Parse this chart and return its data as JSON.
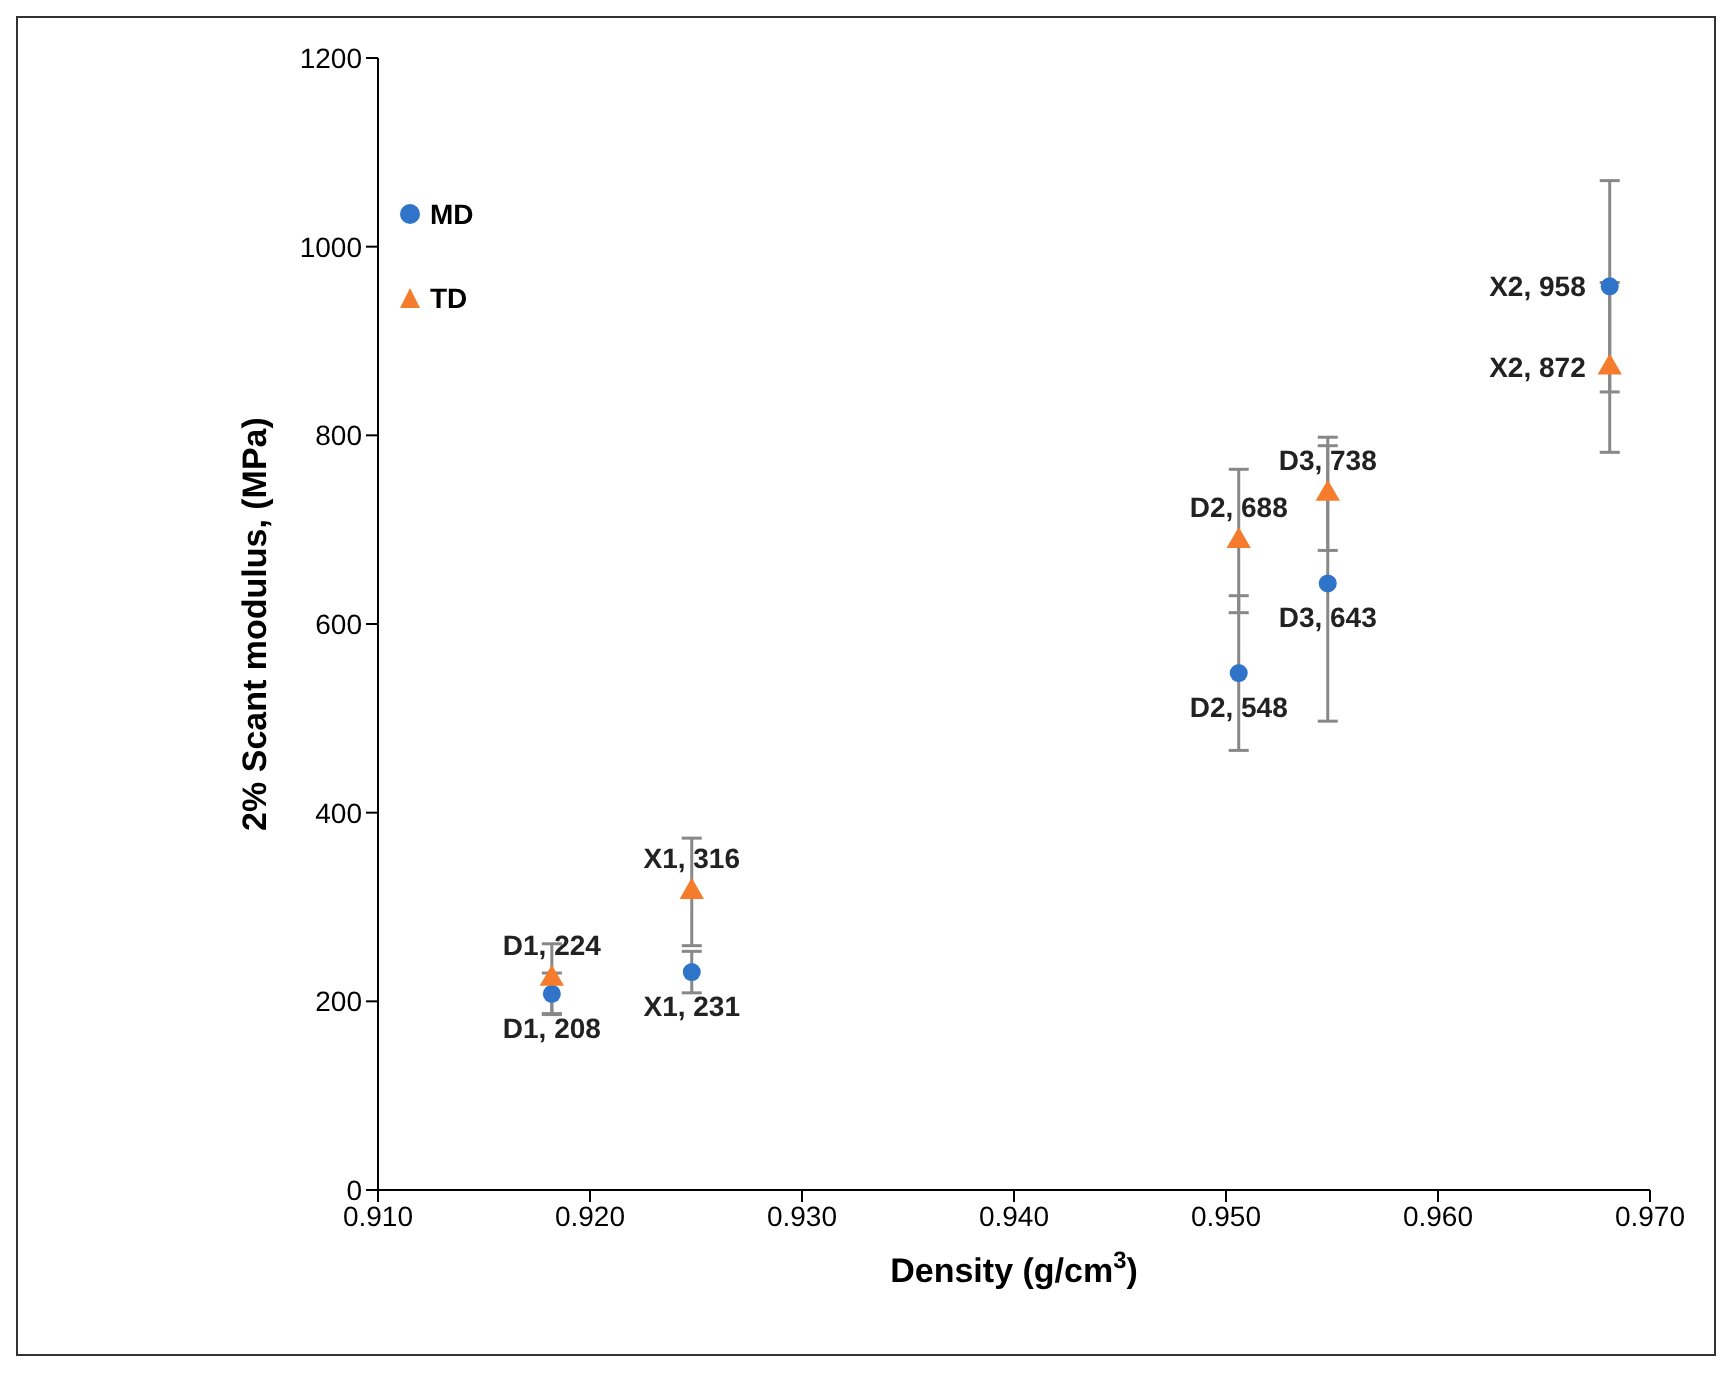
{
  "chart_data": {
    "type": "scatter",
    "xlabel": "Density (g/cm$^{3}$)",
    "ylabel": "2% Scant modulus, (MPa)",
    "xlim": [
      0.91,
      0.97
    ],
    "xticks": [
      {
        "value": 0.91,
        "label": "0.910"
      },
      {
        "value": 0.92,
        "label": "0.920"
      },
      {
        "value": 0.93,
        "label": "0.930"
      },
      {
        "value": 0.94,
        "label": "0.940"
      },
      {
        "value": 0.95,
        "label": "0.950"
      },
      {
        "value": 0.96,
        "label": "0.960"
      },
      {
        "value": 0.97,
        "label": "0.970"
      }
    ],
    "ylim": [
      0,
      1200
    ],
    "yticks": [
      0,
      200,
      400,
      600,
      800,
      1000,
      1200
    ],
    "grid": false,
    "legend": "top left",
    "series": [
      {
        "name": "MD",
        "color": "#2f74c8",
        "marker": "circle",
        "x": [
          0.9182,
          0.9248,
          0.9506,
          0.9548,
          0.9681
        ],
        "values": [
          208,
          231,
          548,
          643,
          958
        ],
        "errors": [
          22,
          22,
          82,
          146,
          112
        ]
      },
      {
        "name": "TD",
        "color": "#f47c2c",
        "marker": "triangle",
        "x": [
          0.9182,
          0.9248,
          0.9506,
          0.9548,
          0.9681
        ],
        "values": [
          224,
          316,
          688,
          738,
          872
        ],
        "errors": [
          37,
          57,
          76,
          60,
          90
        ]
      }
    ],
    "annotations": [
      {
        "text": "D1, 224",
        "x": 0.9182,
        "y": 224
      },
      {
        "text": "D1, 208",
        "x": 0.9182,
        "y": 208
      },
      {
        "text": "X1, 316",
        "x": 0.9248,
        "y": 316
      },
      {
        "text": "X1, 231",
        "x": 0.9248,
        "y": 231
      },
      {
        "text": "D2, 688",
        "x": 0.9506,
        "y": 688
      },
      {
        "text": "D2, 548",
        "x": 0.9506,
        "y": 548
      },
      {
        "text": "D3, 738",
        "x": 0.9548,
        "y": 738
      },
      {
        "text": "D3, 643",
        "x": 0.9548,
        "y": 643
      },
      {
        "text": "X2, 958",
        "x": 0.9681,
        "y": 958
      },
      {
        "text": "X2, 872",
        "x": 0.9681,
        "y": 872
      }
    ]
  }
}
